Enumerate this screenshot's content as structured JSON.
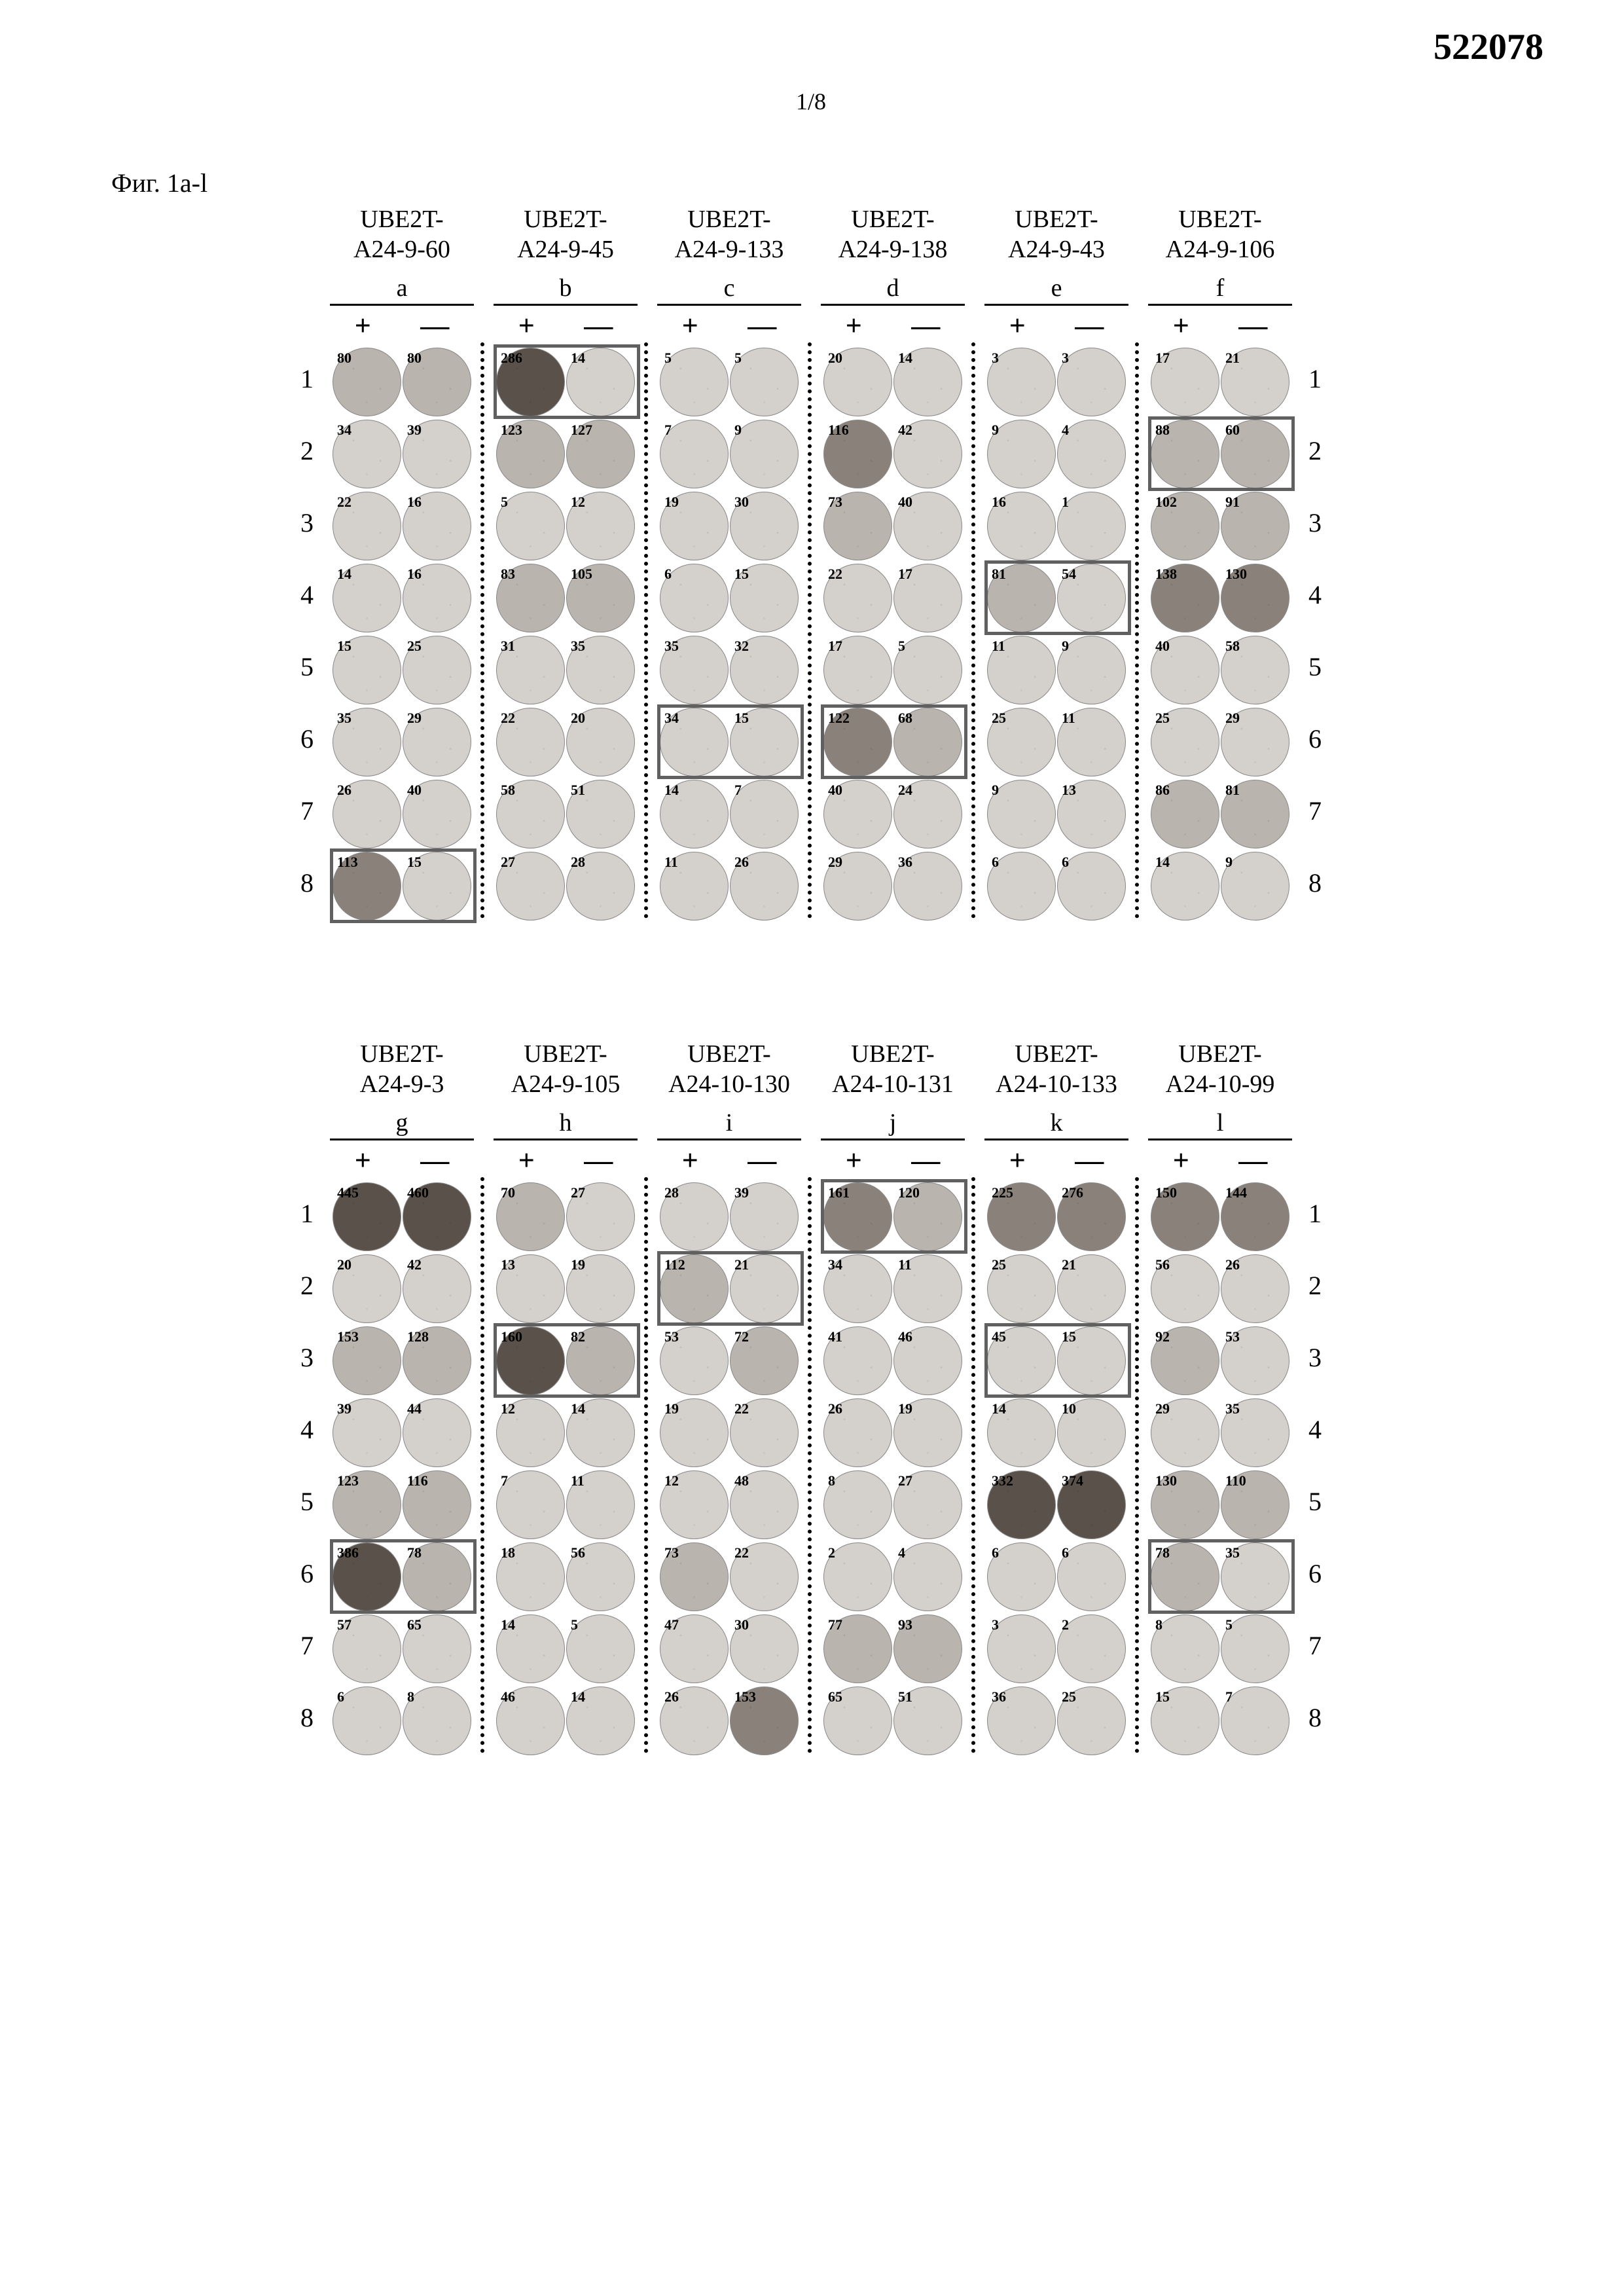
{
  "doc_number": "522078",
  "page_number": "1/8",
  "figure_label": "Фиг. 1a-l",
  "row_numbers": [
    "1",
    "2",
    "3",
    "4",
    "5",
    "6",
    "7",
    "8"
  ],
  "plus": "+",
  "minus": "—",
  "intensity_colors": {
    "low": "#d4d0cc",
    "med": "#bab4ae",
    "high": "#8a827a",
    "vhigh": "#5a524a"
  },
  "panels_top": [
    {
      "id": "a",
      "title": "UBE2T-\nA24-9-60",
      "letter": "a",
      "rows": [
        {
          "p": 80,
          "m": 80,
          "pi": "med",
          "mi": "med"
        },
        {
          "p": 34,
          "m": 39,
          "pi": "low",
          "mi": "low"
        },
        {
          "p": 22,
          "m": 16,
          "pi": "low",
          "mi": "low"
        },
        {
          "p": 14,
          "m": 16,
          "pi": "low",
          "mi": "low"
        },
        {
          "p": 15,
          "m": 25,
          "pi": "low",
          "mi": "low"
        },
        {
          "p": 35,
          "m": 29,
          "pi": "low",
          "mi": "low"
        },
        {
          "p": 26,
          "m": 40,
          "pi": "low",
          "mi": "low"
        },
        {
          "p": 113,
          "m": 15,
          "pi": "high",
          "mi": "low"
        }
      ],
      "highlight": {
        "row": 7
      }
    },
    {
      "id": "b",
      "title": "UBE2T-\nA24-9-45",
      "letter": "b",
      "rows": [
        {
          "p": 286,
          "m": 14,
          "pi": "vhigh",
          "mi": "low"
        },
        {
          "p": 123,
          "m": 127,
          "pi": "med",
          "mi": "med"
        },
        {
          "p": 5,
          "m": 12,
          "pi": "low",
          "mi": "low"
        },
        {
          "p": 83,
          "m": 105,
          "pi": "med",
          "mi": "med"
        },
        {
          "p": 31,
          "m": 35,
          "pi": "low",
          "mi": "low"
        },
        {
          "p": 22,
          "m": 20,
          "pi": "low",
          "mi": "low"
        },
        {
          "p": 58,
          "m": 51,
          "pi": "low",
          "mi": "low"
        },
        {
          "p": 27,
          "m": 28,
          "pi": "low",
          "mi": "low"
        }
      ],
      "highlight": {
        "row": 0
      }
    },
    {
      "id": "c",
      "title": "UBE2T-\nA24-9-133",
      "letter": "c",
      "rows": [
        {
          "p": 5,
          "m": 5,
          "pi": "low",
          "mi": "low"
        },
        {
          "p": 7,
          "m": 9,
          "pi": "low",
          "mi": "low"
        },
        {
          "p": 19,
          "m": 30,
          "pi": "low",
          "mi": "low"
        },
        {
          "p": 6,
          "m": 15,
          "pi": "low",
          "mi": "low"
        },
        {
          "p": 35,
          "m": 32,
          "pi": "low",
          "mi": "low"
        },
        {
          "p": 34,
          "m": 15,
          "pi": "low",
          "mi": "low"
        },
        {
          "p": 14,
          "m": 7,
          "pi": "low",
          "mi": "low"
        },
        {
          "p": 11,
          "m": 26,
          "pi": "low",
          "mi": "low"
        }
      ],
      "highlight": {
        "row": 5
      }
    },
    {
      "id": "d",
      "title": "UBE2T-\nA24-9-138",
      "letter": "d",
      "rows": [
        {
          "p": 20,
          "m": 14,
          "pi": "low",
          "mi": "low"
        },
        {
          "p": 116,
          "m": 42,
          "pi": "high",
          "mi": "low"
        },
        {
          "p": 73,
          "m": 40,
          "pi": "med",
          "mi": "low"
        },
        {
          "p": 22,
          "m": 17,
          "pi": "low",
          "mi": "low"
        },
        {
          "p": 17,
          "m": 5,
          "pi": "low",
          "mi": "low"
        },
        {
          "p": 122,
          "m": 68,
          "pi": "high",
          "mi": "med"
        },
        {
          "p": 40,
          "m": 24,
          "pi": "low",
          "mi": "low"
        },
        {
          "p": 29,
          "m": 36,
          "pi": "low",
          "mi": "low"
        }
      ],
      "highlight": {
        "row": 5
      }
    },
    {
      "id": "e",
      "title": "UBE2T-\nA24-9-43",
      "letter": "e",
      "rows": [
        {
          "p": 3,
          "m": 3,
          "pi": "low",
          "mi": "low"
        },
        {
          "p": 9,
          "m": 4,
          "pi": "low",
          "mi": "low"
        },
        {
          "p": 16,
          "m": 1,
          "pi": "low",
          "mi": "low"
        },
        {
          "p": 81,
          "m": 54,
          "pi": "med",
          "mi": "low"
        },
        {
          "p": 11,
          "m": 9,
          "pi": "low",
          "mi": "low"
        },
        {
          "p": 25,
          "m": 11,
          "pi": "low",
          "mi": "low"
        },
        {
          "p": 9,
          "m": 13,
          "pi": "low",
          "mi": "low"
        },
        {
          "p": 6,
          "m": 6,
          "pi": "low",
          "mi": "low"
        }
      ],
      "highlight": {
        "row": 3
      }
    },
    {
      "id": "f",
      "title": "UBE2T-\nA24-9-106",
      "letter": "f",
      "rows": [
        {
          "p": 17,
          "m": 21,
          "pi": "low",
          "mi": "low"
        },
        {
          "p": 88,
          "m": 60,
          "pi": "med",
          "mi": "med"
        },
        {
          "p": 102,
          "m": 91,
          "pi": "med",
          "mi": "med"
        },
        {
          "p": 138,
          "m": 130,
          "pi": "high",
          "mi": "high"
        },
        {
          "p": 40,
          "m": 58,
          "pi": "low",
          "mi": "low"
        },
        {
          "p": 25,
          "m": 29,
          "pi": "low",
          "mi": "low"
        },
        {
          "p": 86,
          "m": 81,
          "pi": "med",
          "mi": "med"
        },
        {
          "p": 14,
          "m": 9,
          "pi": "low",
          "mi": "low"
        }
      ],
      "highlight": {
        "row": 1
      }
    }
  ],
  "panels_bottom": [
    {
      "id": "g",
      "title": "UBE2T-\nA24-9-3",
      "letter": "g",
      "rows": [
        {
          "p": 445,
          "m": 460,
          "pi": "vhigh",
          "mi": "vhigh"
        },
        {
          "p": 20,
          "m": 42,
          "pi": "low",
          "mi": "low"
        },
        {
          "p": 153,
          "m": 128,
          "pi": "med",
          "mi": "med"
        },
        {
          "p": 39,
          "m": 44,
          "pi": "low",
          "mi": "low"
        },
        {
          "p": 123,
          "m": 116,
          "pi": "med",
          "mi": "med"
        },
        {
          "p": 386,
          "m": 78,
          "pi": "vhigh",
          "mi": "med"
        },
        {
          "p": 57,
          "m": 65,
          "pi": "low",
          "mi": "low"
        },
        {
          "p": 6,
          "m": 8,
          "pi": "low",
          "mi": "low"
        }
      ],
      "highlight": {
        "row": 5
      }
    },
    {
      "id": "h",
      "title": "UBE2T-\nA24-9-105",
      "letter": "h",
      "rows": [
        {
          "p": 70,
          "m": 27,
          "pi": "med",
          "mi": "low"
        },
        {
          "p": 13,
          "m": 19,
          "pi": "low",
          "mi": "low"
        },
        {
          "p": 160,
          "m": 82,
          "pi": "vhigh",
          "mi": "med"
        },
        {
          "p": 12,
          "m": 14,
          "pi": "low",
          "mi": "low"
        },
        {
          "p": 7,
          "m": 11,
          "pi": "low",
          "mi": "low"
        },
        {
          "p": 18,
          "m": 56,
          "pi": "low",
          "mi": "low"
        },
        {
          "p": 14,
          "m": 5,
          "pi": "low",
          "mi": "low"
        },
        {
          "p": 46,
          "m": 14,
          "pi": "low",
          "mi": "low"
        }
      ],
      "highlight": {
        "row": 2
      }
    },
    {
      "id": "i",
      "title": "UBE2T-\nA24-10-130",
      "letter": "i",
      "rows": [
        {
          "p": 28,
          "m": 39,
          "pi": "low",
          "mi": "low"
        },
        {
          "p": 112,
          "m": 21,
          "pi": "med",
          "mi": "low"
        },
        {
          "p": 53,
          "m": 72,
          "pi": "low",
          "mi": "med"
        },
        {
          "p": 19,
          "m": 22,
          "pi": "low",
          "mi": "low"
        },
        {
          "p": 12,
          "m": 48,
          "pi": "low",
          "mi": "low"
        },
        {
          "p": 73,
          "m": 22,
          "pi": "med",
          "mi": "low"
        },
        {
          "p": 47,
          "m": 30,
          "pi": "low",
          "mi": "low"
        },
        {
          "p": 26,
          "m": 153,
          "pi": "low",
          "mi": "high"
        }
      ],
      "highlight": {
        "row": 1
      }
    },
    {
      "id": "j",
      "title": "UBE2T-\nA24-10-131",
      "letter": "j",
      "rows": [
        {
          "p": 161,
          "m": 120,
          "pi": "high",
          "mi": "med"
        },
        {
          "p": 34,
          "m": 11,
          "pi": "low",
          "mi": "low"
        },
        {
          "p": 41,
          "m": 46,
          "pi": "low",
          "mi": "low"
        },
        {
          "p": 26,
          "m": 19,
          "pi": "low",
          "mi": "low"
        },
        {
          "p": 8,
          "m": 27,
          "pi": "low",
          "mi": "low"
        },
        {
          "p": 2,
          "m": 4,
          "pi": "low",
          "mi": "low"
        },
        {
          "p": 77,
          "m": 93,
          "pi": "med",
          "mi": "med"
        },
        {
          "p": 65,
          "m": 51,
          "pi": "low",
          "mi": "low"
        }
      ],
      "highlight": {
        "row": 0
      }
    },
    {
      "id": "k",
      "title": "UBE2T-\nA24-10-133",
      "letter": "k",
      "rows": [
        {
          "p": 225,
          "m": 276,
          "pi": "high",
          "mi": "high"
        },
        {
          "p": 25,
          "m": 21,
          "pi": "low",
          "mi": "low"
        },
        {
          "p": 45,
          "m": 15,
          "pi": "low",
          "mi": "low"
        },
        {
          "p": 14,
          "m": 10,
          "pi": "low",
          "mi": "low"
        },
        {
          "p": 332,
          "m": 374,
          "pi": "vhigh",
          "mi": "vhigh"
        },
        {
          "p": 6,
          "m": 6,
          "pi": "low",
          "mi": "low"
        },
        {
          "p": 3,
          "m": 2,
          "pi": "low",
          "mi": "low"
        },
        {
          "p": 36,
          "m": 25,
          "pi": "low",
          "mi": "low"
        }
      ],
      "highlight": {
        "row": 2
      }
    },
    {
      "id": "l",
      "title": "UBE2T-\nA24-10-99",
      "letter": "l",
      "rows": [
        {
          "p": 150,
          "m": 144,
          "pi": "high",
          "mi": "high"
        },
        {
          "p": 56,
          "m": 26,
          "pi": "low",
          "mi": "low"
        },
        {
          "p": 92,
          "m": 53,
          "pi": "med",
          "mi": "low"
        },
        {
          "p": 29,
          "m": 35,
          "pi": "low",
          "mi": "low"
        },
        {
          "p": 130,
          "m": 110,
          "pi": "med",
          "mi": "med"
        },
        {
          "p": 78,
          "m": 35,
          "pi": "med",
          "mi": "low"
        },
        {
          "p": 8,
          "m": 5,
          "pi": "low",
          "mi": "low"
        },
        {
          "p": 15,
          "m": 7,
          "pi": "low",
          "mi": "low"
        }
      ],
      "highlight": {
        "row": 5
      }
    }
  ]
}
